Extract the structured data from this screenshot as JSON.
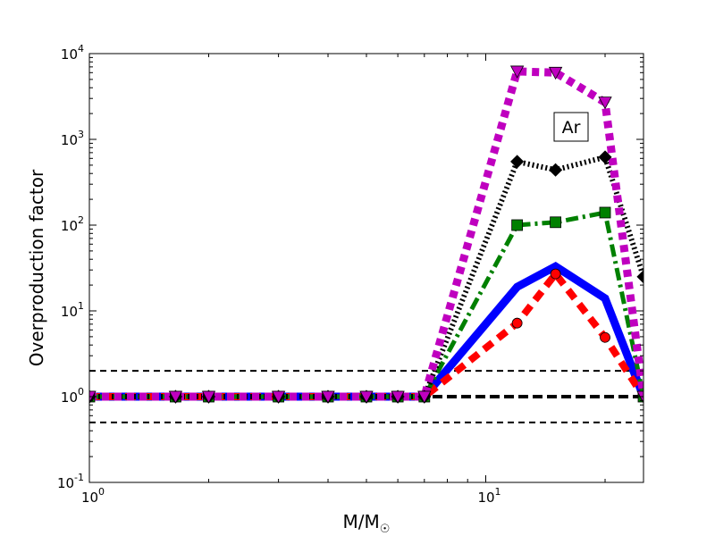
{
  "chart_data": {
    "type": "line",
    "xlabel": "M/M",
    "xlabel_sub": "☉",
    "ylabel": "Overproduction factor",
    "annotation": "Ar",
    "x_scale": "log",
    "y_scale": "log",
    "xlim": [
      1,
      25
    ],
    "ylim": [
      0.1,
      10000
    ],
    "x_ticks": [
      {
        "value": 1,
        "base": "10",
        "exp": "0"
      },
      {
        "value": 10,
        "base": "10",
        "exp": "1"
      }
    ],
    "y_ticks": [
      {
        "value": 0.1,
        "base": "10",
        "exp": "-1"
      },
      {
        "value": 1,
        "base": "10",
        "exp": "0"
      },
      {
        "value": 10,
        "base": "10",
        "exp": "1"
      },
      {
        "value": 100,
        "base": "10",
        "exp": "2"
      },
      {
        "value": 1000,
        "base": "10",
        "exp": "3"
      },
      {
        "value": 10000,
        "base": "10",
        "exp": "4"
      }
    ],
    "reference_lines": [
      {
        "y": 2.0,
        "style": "thin-dashed"
      },
      {
        "y": 1.0,
        "style": "thick-dashed"
      },
      {
        "y": 0.5,
        "style": "thin-dashed"
      }
    ],
    "series": [
      {
        "color": "#0000ff",
        "style": "solid",
        "marker": "none",
        "x": [
          1,
          1.65,
          2,
          3,
          4,
          5,
          6,
          7,
          12,
          15,
          20,
          25
        ],
        "y": [
          1,
          1,
          1,
          1,
          1,
          1,
          1,
          1,
          19,
          33,
          14,
          1
        ]
      },
      {
        "color": "#ff0000",
        "style": "dashed",
        "marker": "circle",
        "x": [
          1,
          1.65,
          2,
          3,
          4,
          5,
          6,
          7,
          12,
          15,
          20,
          25
        ],
        "y": [
          1,
          1,
          1,
          1,
          1,
          1,
          1,
          1,
          7.2,
          27,
          4.9,
          1
        ]
      },
      {
        "color": "#008000",
        "style": "dashdot",
        "marker": "square",
        "x": [
          1,
          1.65,
          2,
          3,
          4,
          5,
          6,
          7,
          12,
          15,
          20,
          25
        ],
        "y": [
          1,
          1,
          1,
          1,
          1,
          1,
          1,
          1,
          100,
          108,
          140,
          1
        ]
      },
      {
        "color": "#000000",
        "style": "dotted",
        "marker": "diamond",
        "x": [
          1,
          1.65,
          2,
          3,
          4,
          5,
          6,
          7,
          12,
          15,
          20,
          25
        ],
        "y": [
          1,
          1,
          1,
          1,
          1,
          1,
          1,
          1,
          550,
          440,
          620,
          25
        ]
      },
      {
        "color": "#bf00bf",
        "style": "dotted",
        "marker": "triangle-down",
        "x": [
          1,
          1.65,
          2,
          3,
          4,
          5,
          6,
          7,
          12,
          15,
          20,
          25
        ],
        "y": [
          1,
          1,
          1,
          1,
          1,
          1,
          1,
          1,
          6200,
          6000,
          2700,
          1
        ]
      }
    ]
  }
}
